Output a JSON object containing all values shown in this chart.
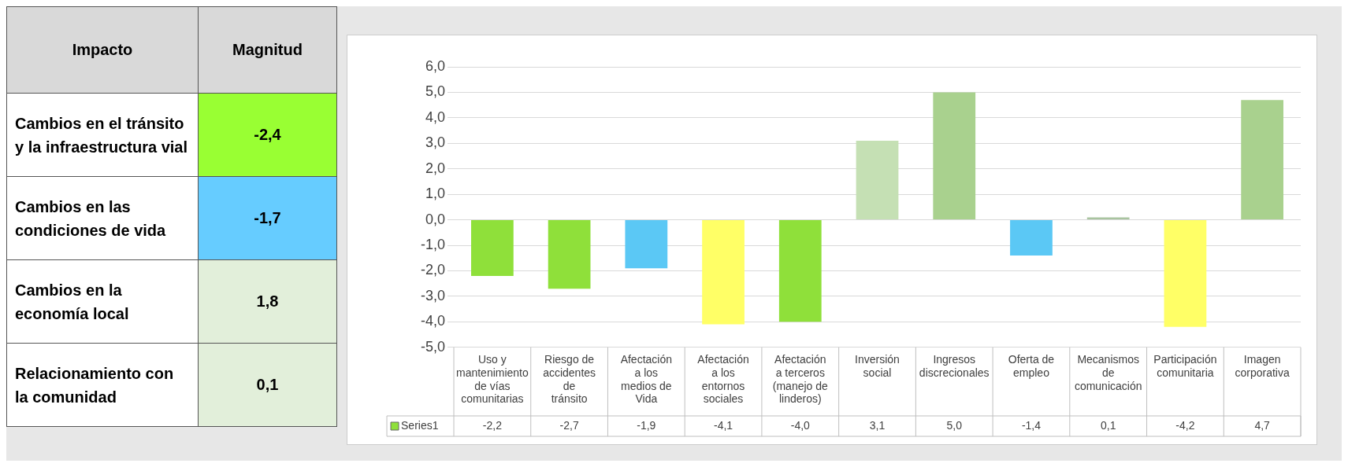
{
  "chart_data": [
    {
      "type": "other",
      "annotations": [
        "Impacto"
      ],
      "categories": [
        "Cambios en el tránsito y la infraestructura vial",
        "Cambios en las condiciones de vida",
        "Cambios en la economía local",
        "Relacionamiento con la comunidad"
      ],
      "series": [
        {
          "name": "Magnitud",
          "values": [
            -2.4,
            -1.7,
            1.8,
            0.1
          ],
          "value_labels": [
            "-2,4",
            "-1,7",
            "1,8",
            "0,1"
          ],
          "colors": [
            "#99ff33",
            "#66ccff",
            "#e2efda",
            "#e2efda"
          ]
        }
      ]
    },
    {
      "type": "bar",
      "categories": [
        "Uso y mantenimiento de vías comunitarias",
        "Riesgo de accidentes de tránsito",
        "Afectación a los medios de Vida",
        "Afectación a los entornos sociales",
        "Afectación a terceros (manejo de linderos)",
        "Inversión social",
        "Ingresos discrecionales",
        "Oferta de empleo",
        "Mecanismos de comunicación",
        "Participación comunitaria",
        "Imagen corporativa"
      ],
      "series": [
        {
          "name": "Series1",
          "colors": [
            "#8fe03a",
            "#8fe03a",
            "#5bc8f5",
            "#ffff66",
            "#8fe03a",
            "#c5e0b4",
            "#a9d18e",
            "#5bc8f5",
            "#a9c4a0",
            "#ffff66",
            "#a9d18e"
          ],
          "values": [
            -2.2,
            -2.7,
            -1.9,
            -4.1,
            -4.0,
            3.1,
            5.0,
            -1.4,
            0.1,
            -4.2,
            4.7
          ],
          "value_labels": [
            "-2,2",
            "-2,7",
            "-1,9",
            "-4,1",
            "-4,0",
            "3,1",
            "5,0",
            "-1,4",
            "0,1",
            "-4,2",
            "4,7"
          ]
        }
      ],
      "ylim": [
        -5,
        6
      ],
      "yticks": [
        {
          "value": -5,
          "label": "-5,0"
        },
        {
          "value": -4,
          "label": "-4,0"
        },
        {
          "value": -3,
          "label": "-3,0"
        },
        {
          "value": -2,
          "label": "-2,0"
        },
        {
          "value": -1,
          "label": "-1,0"
        },
        {
          "value": 0,
          "label": "0,0"
        },
        {
          "value": 1,
          "label": "1,0"
        },
        {
          "value": 2,
          "label": "2,0"
        },
        {
          "value": 3,
          "label": "3,0"
        },
        {
          "value": 4,
          "label": "4,0"
        },
        {
          "value": 5,
          "label": "5,0"
        },
        {
          "value": 6,
          "label": "6,0"
        }
      ],
      "grid": "y",
      "legend": "bottom"
    }
  ]
}
